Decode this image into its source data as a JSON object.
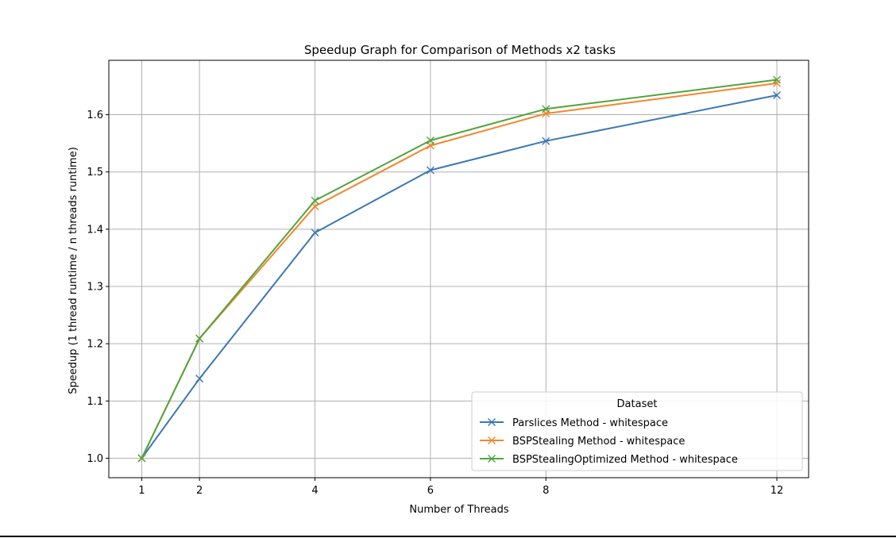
{
  "chart_data": {
    "type": "line",
    "title": "Speedup Graph for Comparison of Methods x2 tasks",
    "xlabel": "Number of Threads",
    "ylabel": "Speedup (1 thread runtime / n threads runtime)",
    "x": [
      1,
      2,
      4,
      6,
      8,
      12
    ],
    "xticks": [
      1,
      2,
      4,
      6,
      8,
      12
    ],
    "yticks": [
      1.0,
      1.1,
      1.2,
      1.3,
      1.4,
      1.5,
      1.6
    ],
    "xlim": [
      0.43,
      12.55
    ],
    "ylim": [
      0.966,
      1.695
    ],
    "grid": true,
    "marker": "x",
    "legend": {
      "title": "Dataset",
      "placement": "lower-right"
    },
    "series": [
      {
        "name": "Parslices Method - whitespace",
        "color": "#3a78b4",
        "values": [
          1.0,
          1.139,
          1.394,
          1.503,
          1.554,
          1.634
        ]
      },
      {
        "name": "BSPStealing Method - whitespace",
        "color": "#f4862b",
        "values": [
          1.0,
          1.209,
          1.44,
          1.546,
          1.602,
          1.655
        ]
      },
      {
        "name": "BSPStealingOptimized Method - whitespace",
        "color": "#52a33f",
        "values": [
          1.0,
          1.209,
          1.45,
          1.555,
          1.61,
          1.661
        ]
      }
    ]
  }
}
